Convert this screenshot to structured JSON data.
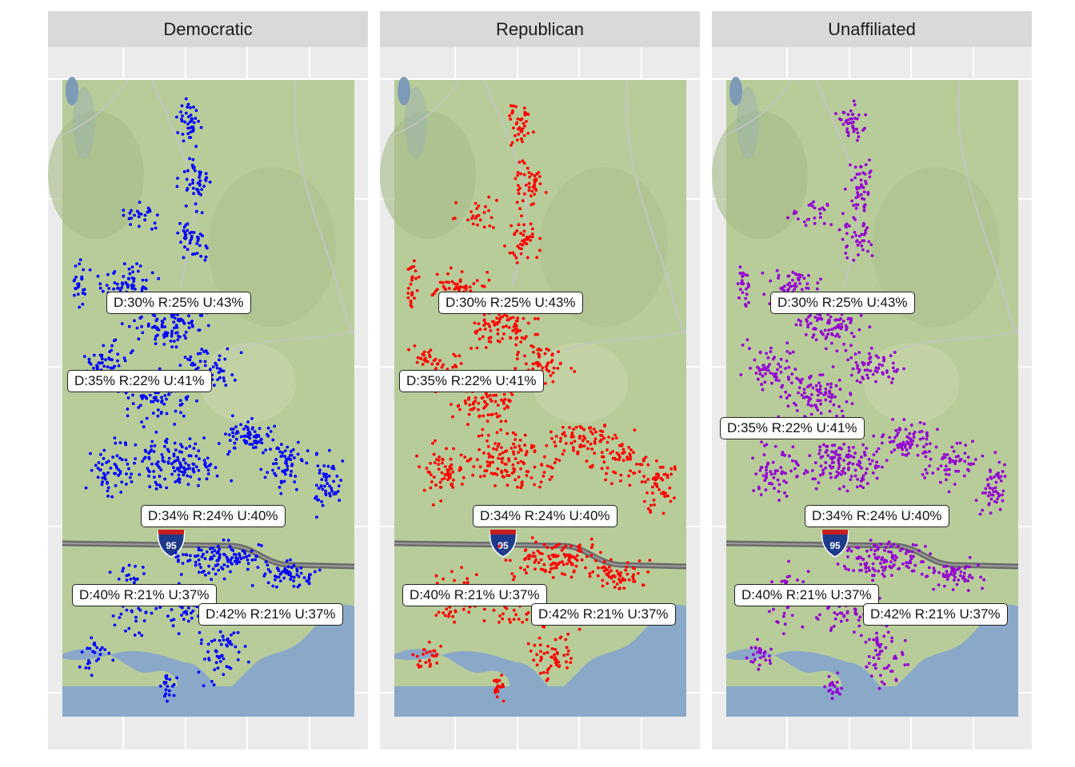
{
  "facets": [
    {
      "title": "Democratic",
      "color": "#0000ff"
    },
    {
      "title": "Republican",
      "color": "#ff0000"
    },
    {
      "title": "Unaffiliated",
      "color": "#9400d3"
    }
  ],
  "labels": [
    {
      "text": "D:30% R:25% U:43%"
    },
    {
      "text": "D:35% R:22% U:41%"
    },
    {
      "text": "D:34% R:24% U:40%"
    },
    {
      "text": "D:40% R:21% U:37%"
    },
    {
      "text": "D:42% R:21% U:37%"
    }
  ],
  "map": {
    "land_color": "#b8cc9a",
    "water_color": "#8aa9c8",
    "highway_shield": "95"
  }
}
